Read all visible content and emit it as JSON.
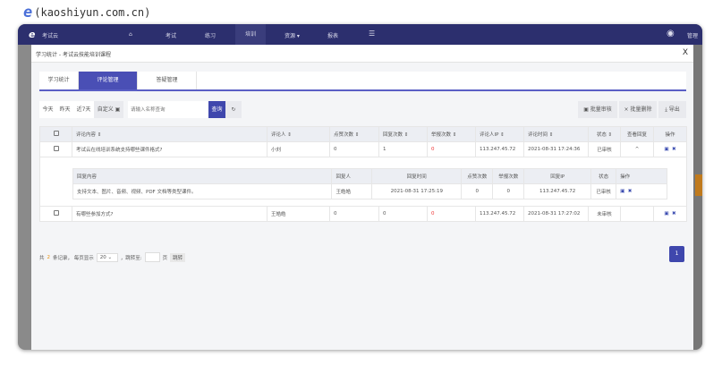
{
  "watermark": {
    "text": "(kaoshiyun.com.cn)"
  },
  "nav": {
    "brand": "考试云",
    "items": [
      {
        "label": "考试"
      },
      {
        "label": "练习"
      },
      {
        "label": "培训"
      },
      {
        "label": "资源 ▾"
      },
      {
        "label": "报表"
      }
    ],
    "user": "管理"
  },
  "modal": {
    "title": "学习统计 - 考试云技能培训课程",
    "close": "X"
  },
  "tabs": [
    {
      "label": "学习统计"
    },
    {
      "label": "评论管理"
    },
    {
      "label": "答疑管理"
    }
  ],
  "toolbar": {
    "today": "今天",
    "yesterday": "昨天",
    "last7": "近7天",
    "custom": "自定义",
    "search_placeholder": "请输入名称查询",
    "search": "查询",
    "batch_review": "批量审核",
    "batch_delete": "批量删除",
    "export": "导出"
  },
  "table": {
    "headers": [
      "评论内容 ⇕",
      "评论人 ⇕",
      "点赞次数 ⇕",
      "回复次数 ⇕",
      "举报次数 ⇕",
      "评论人IP ⇕",
      "评论时间 ⇕",
      "状态 ⇕",
      "查看回复",
      "操作"
    ],
    "rows": [
      {
        "content": "考试云在线培训系统支持哪些课件格式?",
        "user": "小刘",
        "likes": "0",
        "replies": "1",
        "reports": "0",
        "ip": "113.247.45.72",
        "time": "2021-08-31 17:24:36",
        "status": "已审核",
        "expand": "^"
      },
      {
        "content": "有哪些参加方式?",
        "user": "王皓皓",
        "likes": "0",
        "replies": "0",
        "reports": "0",
        "ip": "113.247.45.72",
        "time": "2021-08-31 17:27:02",
        "status": "未审核",
        "expand": ""
      }
    ],
    "reply": {
      "headers": [
        "回复内容",
        "回复人",
        "回复时间",
        "点赞次数",
        "举报次数",
        "回复IP",
        "状态",
        "操作"
      ],
      "row": {
        "content": "支持文本、图片、音频、视频、PDF 文档等类型课件。",
        "user": "王皓皓",
        "time": "2021-08-31 17:25:19",
        "likes": "0",
        "reports": "0",
        "ip": "113.247.45.72",
        "status": "已审核"
      }
    }
  },
  "pagination": {
    "prefix": "共",
    "total": "2",
    "suffix": "条记录，  每页显示",
    "page_size": "20",
    "jump": "，跳转至:",
    "page_unit": "页",
    "go": "跳转",
    "current": "1"
  }
}
